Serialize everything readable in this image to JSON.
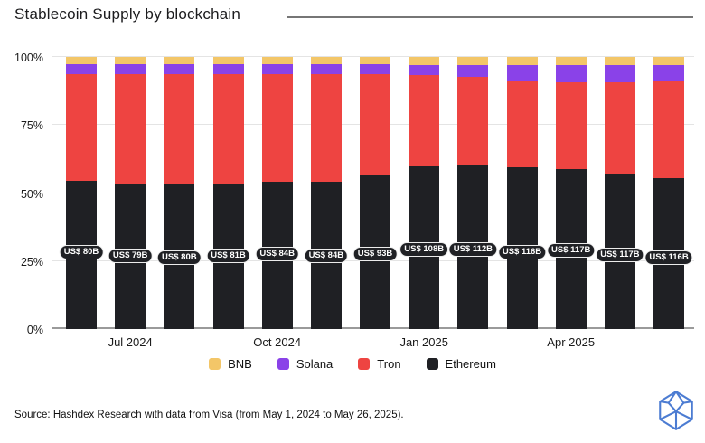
{
  "title": "Stablecoin Supply by blockchain",
  "source": {
    "prefix": "Source: Hashdex Research with data from ",
    "link_text": "Visa",
    "suffix": " (from May 1, 2024 to May 26, 2025)."
  },
  "logo": {
    "name": "hashdex-polyhedron-logo",
    "color": "#4c7cd2"
  },
  "colors": {
    "bnb": "#f3c668",
    "solana": "#8a42e8",
    "tron": "#ee4441",
    "ethereum": "#1f2024",
    "gridline": "#e4e4e4",
    "axis_line": "#9a9a9a",
    "title_rule": "#767676",
    "text": "#1a1a1a",
    "label_pill_bg": "#202125",
    "label_pill_text": "#ffffff"
  },
  "chart_data": {
    "type": "bar",
    "stacked": true,
    "normalized_percent": true,
    "title": "Stablecoin Supply by blockchain",
    "xlabel": "",
    "ylabel": "",
    "ylim": [
      0,
      100
    ],
    "grid": true,
    "yticks": [
      {
        "label": "0%",
        "value": 0
      },
      {
        "label": "25%",
        "value": 25
      },
      {
        "label": "50%",
        "value": 50
      },
      {
        "label": "75%",
        "value": 75
      },
      {
        "label": "100%",
        "value": 100
      }
    ],
    "xticks": [
      {
        "label": "Jul 2024",
        "bar_index": 1
      },
      {
        "label": "Oct 2024",
        "bar_index": 4
      },
      {
        "label": "Jan 2025",
        "bar_index": 7
      },
      {
        "label": "Apr 2025",
        "bar_index": 10
      }
    ],
    "legend_position": "bottom",
    "series_order_bottom_to_top": [
      "ethereum",
      "tron",
      "solana",
      "bnb"
    ],
    "legend": [
      {
        "key": "bnb",
        "label": "BNB"
      },
      {
        "key": "solana",
        "label": "Solana"
      },
      {
        "key": "tron",
        "label": "Tron"
      },
      {
        "key": "ethereum",
        "label": "Ethereum"
      }
    ],
    "bars": [
      {
        "total_label": "US$ 80B",
        "ethereum": 54.5,
        "tron": 39.1,
        "solana": 3.6,
        "bnb": 2.8
      },
      {
        "total_label": "US$ 79B",
        "ethereum": 53.6,
        "tron": 40.0,
        "solana": 3.6,
        "bnb": 2.8
      },
      {
        "total_label": "US$ 80B",
        "ethereum": 53.2,
        "tron": 40.4,
        "solana": 3.6,
        "bnb": 2.8
      },
      {
        "total_label": "US$ 81B",
        "ethereum": 53.3,
        "tron": 40.3,
        "solana": 3.6,
        "bnb": 2.8
      },
      {
        "total_label": "US$ 84B",
        "ethereum": 54.3,
        "tron": 39.3,
        "solana": 3.6,
        "bnb": 2.8
      },
      {
        "total_label": "US$ 84B",
        "ethereum": 54.2,
        "tron": 39.4,
        "solana": 3.6,
        "bnb": 2.8
      },
      {
        "total_label": "US$ 93B",
        "ethereum": 56.4,
        "tron": 37.2,
        "solana": 3.6,
        "bnb": 2.8
      },
      {
        "total_label": "US$ 108B",
        "ethereum": 59.7,
        "tron": 33.6,
        "solana": 3.6,
        "bnb": 3.1
      },
      {
        "total_label": "US$ 112B",
        "ethereum": 60.2,
        "tron": 32.6,
        "solana": 4.3,
        "bnb": 2.9
      },
      {
        "total_label": "US$ 116B",
        "ethereum": 59.4,
        "tron": 31.6,
        "solana": 6.1,
        "bnb": 2.9
      },
      {
        "total_label": "US$ 117B",
        "ethereum": 58.8,
        "tron": 32.0,
        "solana": 6.3,
        "bnb": 2.9
      },
      {
        "total_label": "US$ 117B",
        "ethereum": 57.2,
        "tron": 33.6,
        "solana": 6.3,
        "bnb": 2.9
      },
      {
        "total_label": "US$ 116B",
        "ethereum": 55.6,
        "tron": 35.5,
        "solana": 6.0,
        "bnb": 2.9
      }
    ]
  }
}
